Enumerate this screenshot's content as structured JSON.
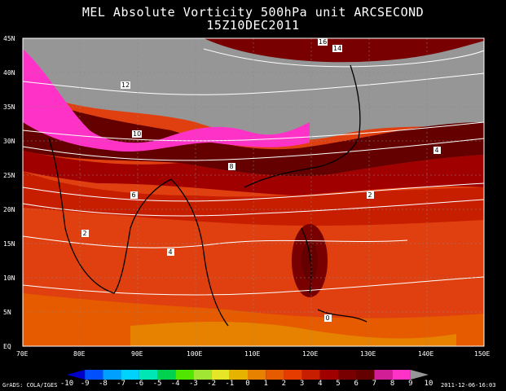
{
  "title_line1": "MEL Absolute Vorticity 500hPa unit ARCSECOND",
  "title_line2": "15Z10DEC2011",
  "lat_labels": [
    "45N",
    "40N",
    "35N",
    "30N",
    "25N",
    "20N",
    "15N",
    "10N",
    "5N",
    "EQ"
  ],
  "lon_labels": [
    "70E",
    "80E",
    "90E",
    "100E",
    "110E",
    "120E",
    "130E",
    "140E",
    "150E"
  ],
  "contour_labels": [
    "0",
    "2",
    "4",
    "6",
    "8",
    "10",
    "12",
    "14",
    "16"
  ],
  "colorbar": {
    "labels": [
      "-10",
      "-9",
      "-8",
      "-7",
      "-6",
      "-5",
      "-4",
      "-3",
      "-2",
      "-1",
      "0",
      "1",
      "2",
      "3",
      "4",
      "5",
      "6",
      "7",
      "8",
      "9",
      "10"
    ],
    "colors": [
      "#0000c8",
      "#0050ff",
      "#00a0ff",
      "#00d2ff",
      "#00e6b4",
      "#00d250",
      "#50e600",
      "#a0e632",
      "#e6e628",
      "#e6b400",
      "#e68200",
      "#e65a00",
      "#e63c00",
      "#c81e00",
      "#a00000",
      "#780000",
      "#640000",
      "#d21e96",
      "#ff32c8",
      "#969696"
    ]
  },
  "credit": "GrADS: COLA/IGES",
  "timestamp": "2011-12-06-16:03"
}
